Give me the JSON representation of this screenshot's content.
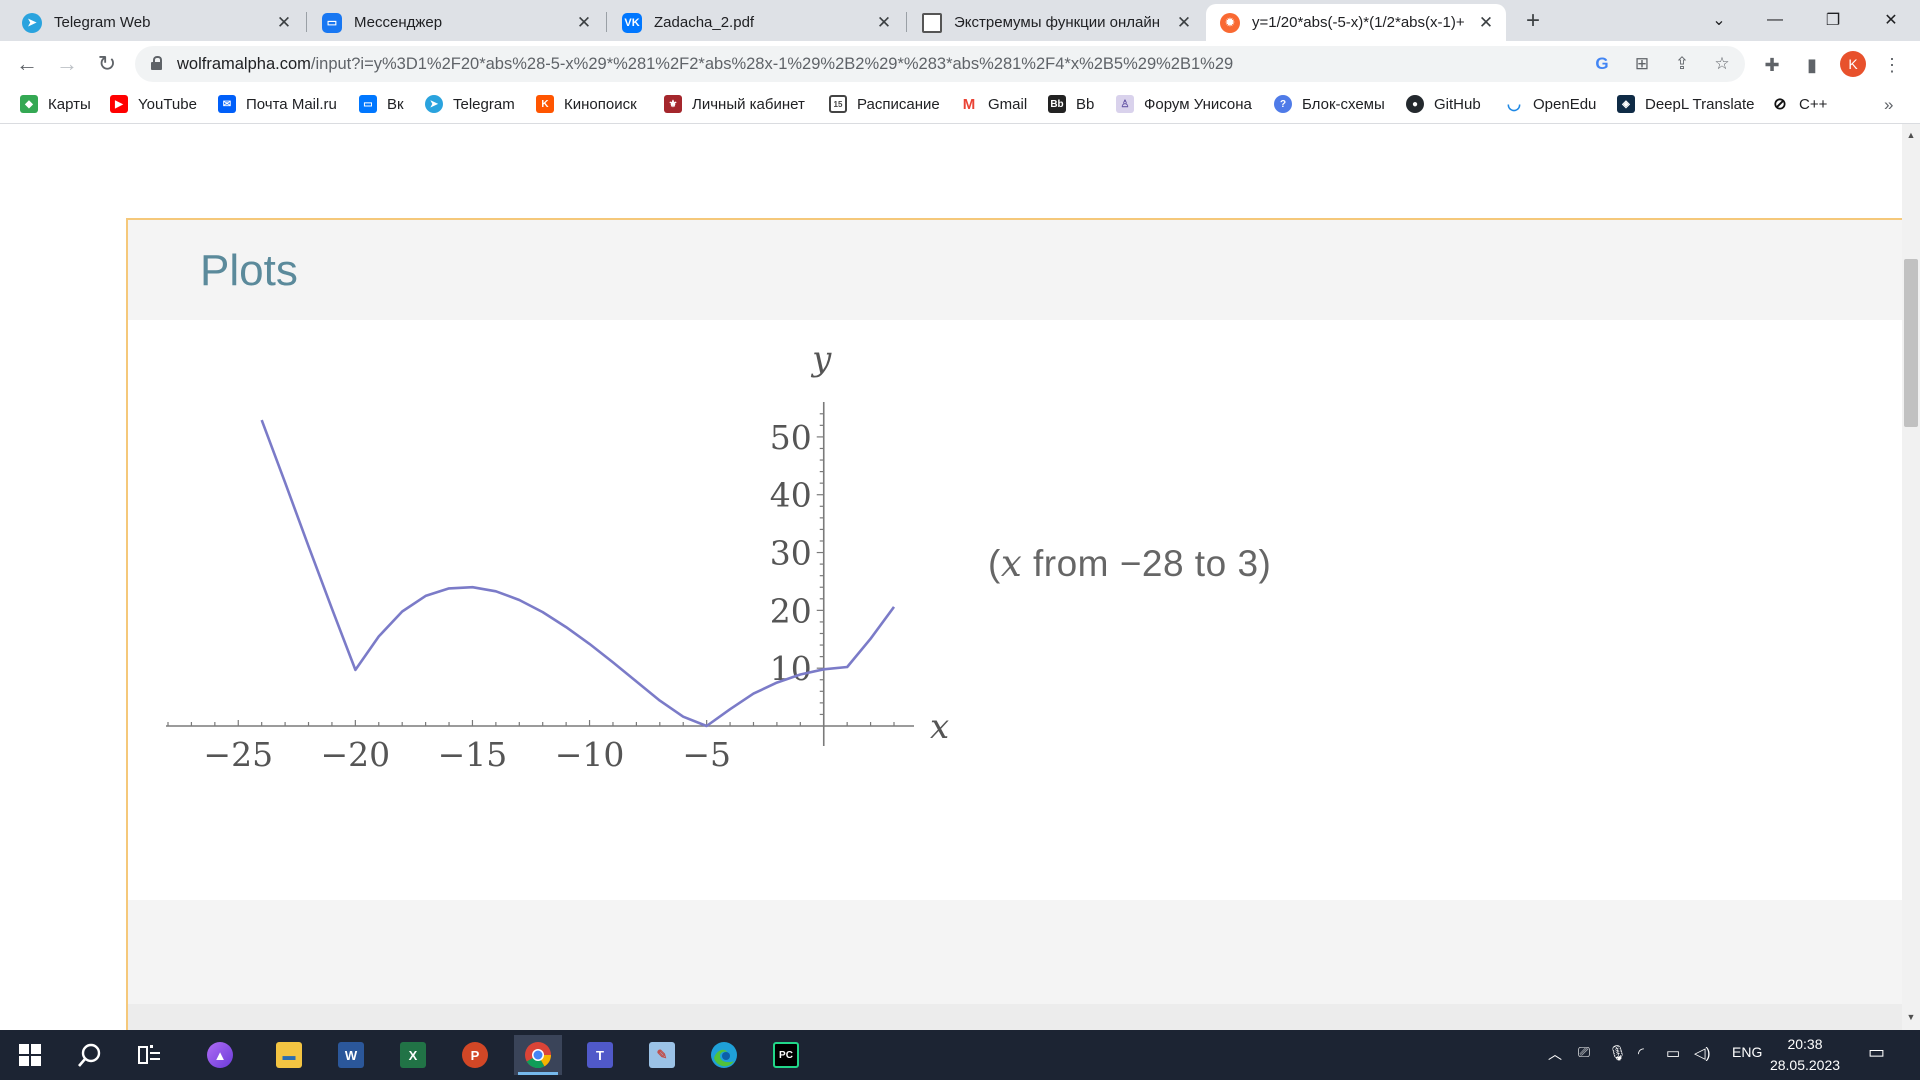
{
  "browser": {
    "tabs": [
      {
        "title": "Telegram Web",
        "icon": "telegram-icon"
      },
      {
        "title": "Мессенджер",
        "icon": "messenger-icon"
      },
      {
        "title": "Zadacha_2.pdf",
        "icon": "vk-icon"
      },
      {
        "title": "Экстремумы функции онлайн",
        "icon": "document-icon"
      },
      {
        "title": "y=1/20*abs(-5-x)*(1/2*abs(x-1)+",
        "icon": "wolfram-icon"
      }
    ],
    "active_tab": 4,
    "url_host": "wolframalpha.com",
    "url_path": "/input?i=y%3D1%2F20*abs%28-5-x%29*%281%2F2*abs%28x-1%29%2B2%29*%283*abs%281%2F4*x%2B5%29%2B1%29",
    "profile_initial": "K"
  },
  "bookmarks": [
    {
      "label": "Карты",
      "icon": "maps-icon",
      "color": "#34a853"
    },
    {
      "label": "YouTube",
      "icon": "youtube-icon",
      "color": "#ff0000"
    },
    {
      "label": "Почта Mail.ru",
      "icon": "mail-icon",
      "color": "#005ff9"
    },
    {
      "label": "Вк",
      "icon": "vk-icon",
      "color": "#0077ff"
    },
    {
      "label": "Telegram",
      "icon": "telegram-icon",
      "color": "#2aa3de"
    },
    {
      "label": "Кинопоиск",
      "icon": "kinopoisk-icon",
      "color": "#ff5500"
    },
    {
      "label": "Личный кабинет",
      "icon": "university-icon",
      "color": "#a4262c"
    },
    {
      "label": "Расписание",
      "icon": "calendar-icon",
      "color": "#444444"
    },
    {
      "label": "Gmail",
      "icon": "gmail-icon",
      "color": "#ea4335"
    },
    {
      "label": "Bb",
      "icon": "blackboard-icon",
      "color": "#222222"
    },
    {
      "label": "Форум Унисона",
      "icon": "forum-icon",
      "color": "#8e7cc3"
    },
    {
      "label": "Блок-схемы",
      "icon": "flowchart-icon",
      "color": "#4f7be8"
    },
    {
      "label": "GitHub",
      "icon": "github-icon",
      "color": "#24292e"
    },
    {
      "label": "OpenEdu",
      "icon": "openedu-icon",
      "color": "#1e88e5"
    },
    {
      "label": "DeepL Translate",
      "icon": "deepl-icon",
      "color": "#0f2b46"
    },
    {
      "label": "C++",
      "icon": "cpp-icon",
      "color": "#111111"
    }
  ],
  "section": {
    "title": "Plots"
  },
  "plot_range": {
    "prefix": "(",
    "var": "x",
    "text": " from −28 to 3)"
  },
  "chart_data": {
    "type": "line",
    "xlabel": "x",
    "ylabel": "y",
    "xlim": [
      -28,
      3
    ],
    "ylim": [
      0,
      55
    ],
    "x_ticks": [
      -25,
      -20,
      -15,
      -10,
      -5
    ],
    "x_tick_labels": [
      "−25",
      "−20",
      "−15",
      "−10",
      "−5"
    ],
    "y_ticks": [
      10,
      20,
      30,
      40,
      50
    ],
    "y_tick_labels": [
      "10",
      "20",
      "30",
      "40",
      "50"
    ],
    "grid": false,
    "series": [
      {
        "color": "#7b7bc8",
        "x": [
          -24,
          -23,
          -22,
          -21,
          -20,
          -19,
          -18,
          -17,
          -16,
          -15,
          -14,
          -13,
          -12,
          -11,
          -10,
          -9,
          -8,
          -7,
          -6,
          -5,
          -4,
          -3,
          -2,
          -1,
          0,
          1,
          2,
          3
        ],
        "y": [
          52.9,
          42.1,
          31.1,
          20.3,
          9.7,
          15.5,
          19.8,
          22.5,
          23.8,
          24.0,
          23.3,
          21.8,
          19.7,
          17.1,
          14.2,
          11.0,
          7.7,
          4.4,
          1.6,
          0,
          2.9,
          5.6,
          7.5,
          8.9,
          9.8,
          10.2,
          15.1,
          20.6
        ]
      }
    ]
  },
  "taskbar": {
    "apps": [
      "start-icon",
      "search-icon",
      "task-view-icon",
      "alice-icon",
      "file-explorer-icon",
      "word-icon",
      "excel-icon",
      "powerpoint-icon",
      "chrome-icon",
      "teams-icon",
      "paint-icon",
      "edge-icon",
      "pycharm-icon"
    ],
    "language": "ENG",
    "time": "20:38",
    "date": "28.05.2023"
  }
}
